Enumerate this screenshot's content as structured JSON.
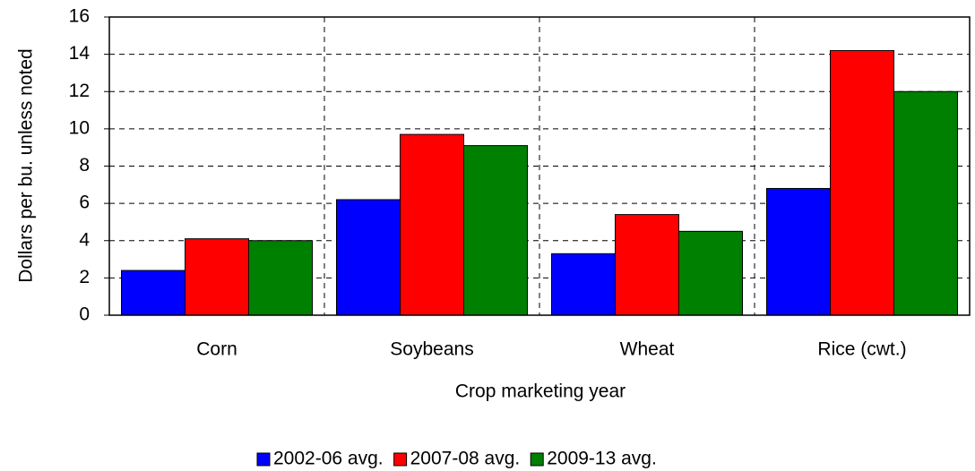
{
  "chart_data": {
    "type": "bar",
    "x_label": "Crop marketing year",
    "y_label": "Dollars per bu. unless noted",
    "categories": [
      "Corn",
      "Soybeans",
      "Wheat",
      "Rice (cwt.)"
    ],
    "series": [
      {
        "name": "2002-06 avg.",
        "color": "#0000ff",
        "values": [
          2.4,
          6.2,
          3.3,
          6.8
        ]
      },
      {
        "name": "2007-08 avg.",
        "color": "#ff0000",
        "values": [
          4.1,
          9.7,
          5.4,
          14.2
        ]
      },
      {
        "name": "2009-13 avg.",
        "color": "#008000",
        "values": [
          4.0,
          9.1,
          4.5,
          12.0
        ]
      }
    ],
    "ylim": [
      0,
      16
    ],
    "yticks": [
      0,
      2,
      4,
      6,
      8,
      10,
      12,
      14,
      16
    ],
    "grid": true,
    "legend": "bottom"
  }
}
